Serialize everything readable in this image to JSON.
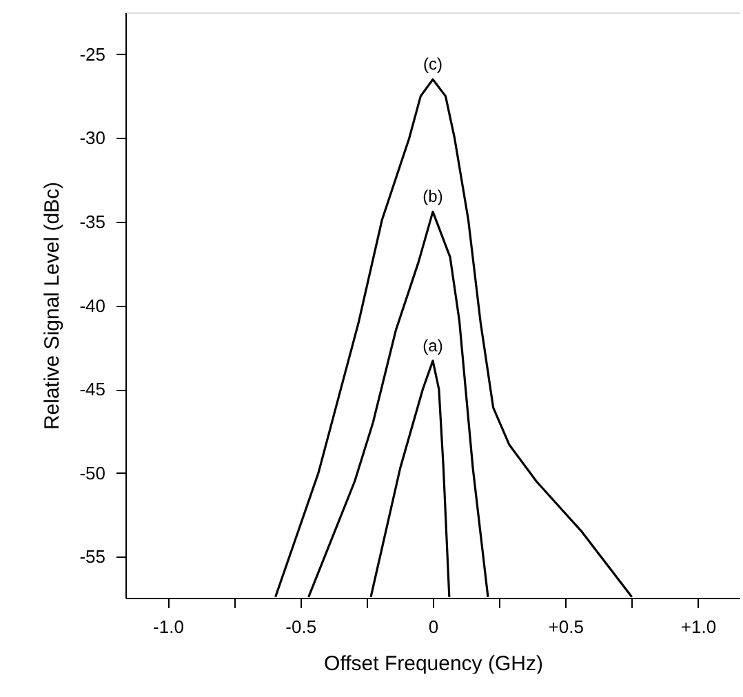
{
  "chart_data": {
    "type": "line",
    "xlabel": "Offset Frequency  (GHz)",
    "ylabel": "Relative Signal Level  (dBc)",
    "xlim": [
      -1.16,
      1.16
    ],
    "ylim": [
      -57.45,
      -22.5
    ],
    "xticks": [
      {
        "value": -1.0,
        "label": "-1.0"
      },
      {
        "value": -0.75,
        "label": null
      },
      {
        "value": -0.5,
        "label": "-0.5"
      },
      {
        "value": -0.25,
        "label": null
      },
      0,
      {
        "value": 0.25,
        "label": null
      },
      {
        "value": 0.5,
        "label": "+0.5"
      },
      {
        "value": 0.75,
        "label": null
      },
      {
        "value": 1.0,
        "label": "+1.0"
      }
    ],
    "yticks": [
      -55,
      -50,
      -45,
      -40,
      -35,
      -30,
      -25
    ],
    "grid": false,
    "legend": false,
    "marker": "none",
    "line_style": "solid",
    "series": [
      {
        "name": "(a)",
        "color": "#000000",
        "x": [
          -0.234,
          -0.123,
          -0.038,
          0,
          0.023,
          0.04,
          0.062
        ],
        "values": [
          -57.4,
          -49.7,
          -45.0,
          -43.3,
          -45.0,
          -49.7,
          -57.4
        ]
      },
      {
        "name": "(b)",
        "color": "#000000",
        "x": [
          -0.469,
          -0.295,
          -0.226,
          -0.14,
          -0.054,
          0,
          0.065,
          0.1,
          0.151,
          0.208
        ],
        "values": [
          -57.4,
          -50.5,
          -47.0,
          -41.5,
          -37.4,
          -34.4,
          -37.1,
          -40.9,
          -49.7,
          -57.4
        ]
      },
      {
        "name": "(c)",
        "color": "#000000",
        "x": [
          -0.594,
          -0.432,
          -0.28,
          -0.192,
          -0.089,
          -0.046,
          0,
          0.048,
          0.082,
          0.134,
          0.18,
          0.228,
          0.288,
          0.391,
          0.562,
          0.751
        ],
        "values": [
          -57.4,
          -50.0,
          -41.0,
          -34.9,
          -30.0,
          -27.5,
          -26.5,
          -27.5,
          -30.0,
          -34.9,
          -41.0,
          -46.1,
          -48.3,
          -50.5,
          -53.5,
          -57.4
        ]
      }
    ]
  }
}
